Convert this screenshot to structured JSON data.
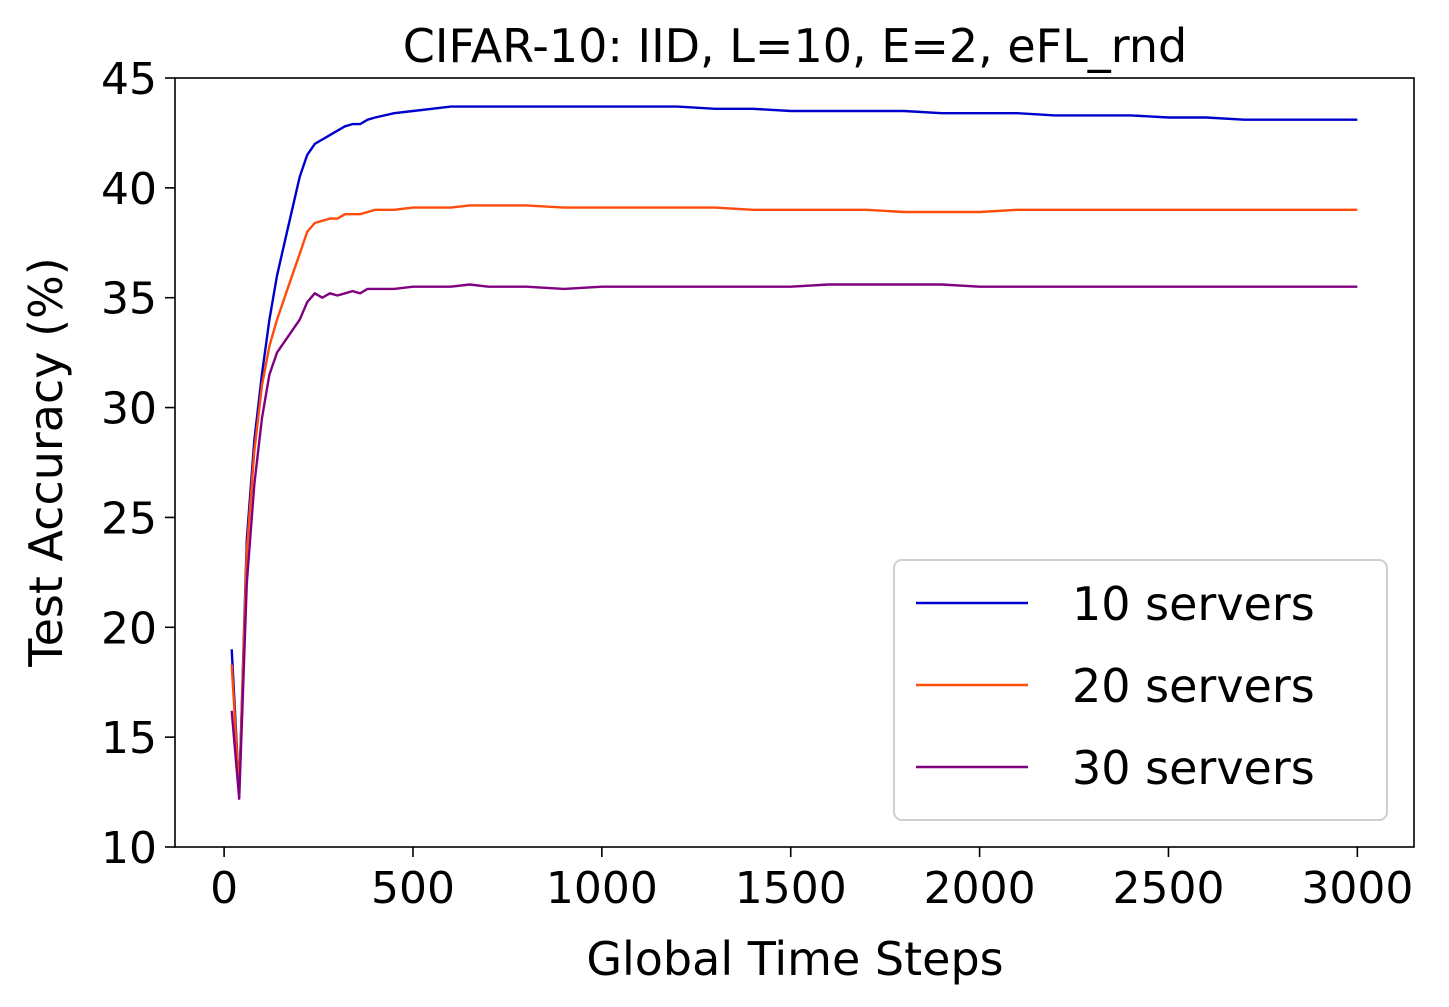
{
  "chart_data": {
    "type": "line",
    "title": "CIFAR-10: IID, L=10, E=2, eFL_rnd",
    "xlabel": "Global Time Steps",
    "ylabel": "Test Accuracy (%)",
    "xlim": [
      -130,
      3150
    ],
    "ylim": [
      10,
      45
    ],
    "xticks": [
      0,
      500,
      1000,
      1500,
      2000,
      2500,
      3000
    ],
    "yticks": [
      10,
      15,
      20,
      25,
      30,
      35,
      40,
      45
    ],
    "xtick_labels": [
      "0",
      "500",
      "1000",
      "1500",
      "2000",
      "2500",
      "3000"
    ],
    "ytick_labels": [
      "10",
      "15",
      "20",
      "25",
      "30",
      "35",
      "40",
      "45"
    ],
    "grid": false,
    "legend_position": "lower-right",
    "series": [
      {
        "name": "10 servers",
        "color": "#0000cc",
        "x": [
          20,
          40,
          60,
          80,
          100,
          120,
          140,
          160,
          180,
          200,
          220,
          240,
          260,
          280,
          300,
          320,
          340,
          360,
          380,
          400,
          450,
          500,
          550,
          600,
          650,
          700,
          800,
          900,
          1000,
          1100,
          1200,
          1300,
          1400,
          1500,
          1600,
          1700,
          1800,
          1900,
          2000,
          2100,
          2200,
          2300,
          2400,
          2500,
          2600,
          2700,
          2800,
          2900,
          3000
        ],
        "y": [
          19.0,
          12.5,
          24.0,
          28.5,
          31.5,
          34.0,
          36.0,
          37.5,
          39.0,
          40.5,
          41.5,
          42.0,
          42.2,
          42.4,
          42.6,
          42.8,
          42.9,
          42.9,
          43.1,
          43.2,
          43.4,
          43.5,
          43.6,
          43.7,
          43.7,
          43.7,
          43.7,
          43.7,
          43.7,
          43.7,
          43.7,
          43.6,
          43.6,
          43.5,
          43.5,
          43.5,
          43.5,
          43.4,
          43.4,
          43.4,
          43.3,
          43.3,
          43.3,
          43.2,
          43.2,
          43.1,
          43.1,
          43.1,
          43.1
        ]
      },
      {
        "name": "20 servers",
        "color": "#ff4c0a",
        "x": [
          20,
          40,
          60,
          80,
          100,
          120,
          140,
          160,
          180,
          200,
          220,
          240,
          260,
          280,
          300,
          320,
          340,
          360,
          380,
          400,
          450,
          500,
          550,
          600,
          650,
          700,
          800,
          900,
          1000,
          1100,
          1200,
          1300,
          1400,
          1500,
          1600,
          1700,
          1800,
          1900,
          2000,
          2100,
          2200,
          2300,
          2400,
          2500,
          2600,
          2700,
          2800,
          2900,
          3000
        ],
        "y": [
          18.3,
          12.5,
          23.5,
          28.0,
          31.0,
          32.8,
          34.0,
          35.0,
          36.0,
          37.0,
          38.0,
          38.4,
          38.5,
          38.6,
          38.6,
          38.8,
          38.8,
          38.8,
          38.9,
          39.0,
          39.0,
          39.1,
          39.1,
          39.1,
          39.2,
          39.2,
          39.2,
          39.1,
          39.1,
          39.1,
          39.1,
          39.1,
          39.0,
          39.0,
          39.0,
          39.0,
          38.9,
          38.9,
          38.9,
          39.0,
          39.0,
          39.0,
          39.0,
          39.0,
          39.0,
          39.0,
          39.0,
          39.0,
          39.0
        ]
      },
      {
        "name": "30 servers",
        "color": "#800080",
        "x": [
          20,
          40,
          60,
          80,
          100,
          120,
          140,
          160,
          180,
          200,
          220,
          240,
          260,
          280,
          300,
          320,
          340,
          360,
          380,
          400,
          450,
          500,
          550,
          600,
          650,
          700,
          800,
          900,
          1000,
          1100,
          1200,
          1300,
          1400,
          1500,
          1600,
          1700,
          1800,
          1900,
          2000,
          2100,
          2200,
          2300,
          2400,
          2500,
          2600,
          2700,
          2800,
          2900,
          3000
        ],
        "y": [
          16.2,
          12.2,
          22.0,
          26.5,
          29.5,
          31.5,
          32.5,
          33.0,
          33.5,
          34.0,
          34.8,
          35.2,
          35.0,
          35.2,
          35.1,
          35.2,
          35.3,
          35.2,
          35.4,
          35.4,
          35.4,
          35.5,
          35.5,
          35.5,
          35.6,
          35.5,
          35.5,
          35.4,
          35.5,
          35.5,
          35.5,
          35.5,
          35.5,
          35.5,
          35.6,
          35.6,
          35.6,
          35.6,
          35.5,
          35.5,
          35.5,
          35.5,
          35.5,
          35.5,
          35.5,
          35.5,
          35.5,
          35.5,
          35.5
        ]
      }
    ]
  }
}
